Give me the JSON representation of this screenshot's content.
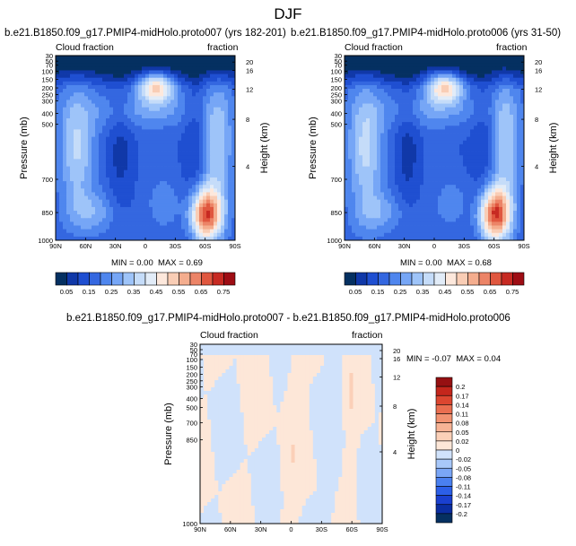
{
  "figure": {
    "title": "DJF"
  },
  "colors": {
    "fill_colors_top": [
      "#053061",
      "#1038a8",
      "#1f4fd1",
      "#3467e0",
      "#4f86ee",
      "#76a6f6",
      "#9ec4f9",
      "#c5dcf9",
      "#e2ecf8",
      "#fde8dc",
      "#f9cdb5",
      "#f4ad8e",
      "#ec8467",
      "#e0573f",
      "#c72a22",
      "#9e0d14",
      "#6a0a10"
    ],
    "fill_colors_diff": [
      "#053061",
      "#0b2ea2",
      "#1a40d0",
      "#2c5fe8",
      "#4a80f0",
      "#7aa6f6",
      "#a8c8fa",
      "#d0e2fb",
      "#fde7d8",
      "#fbd0b8",
      "#f7b395",
      "#f29271",
      "#ea6e50",
      "#dc4630",
      "#c4261c",
      "#961012"
    ]
  },
  "chart_data": [
    {
      "id": "panel-left",
      "type": "contour",
      "title": "b.e21.B1850.f09_g17.PMIP4-midHolo.proto007 (yrs 182-201)",
      "left_label": "Cloud fraction",
      "right_label": "fraction",
      "xlabel": "",
      "ylabel": "Pressure (mb)",
      "y2label": "Height (km)",
      "x_ticks": [
        "90N",
        "60N",
        "30N",
        "0",
        "30S",
        "60S",
        "90S"
      ],
      "y_ticks": [
        "30",
        "50",
        "70",
        "100",
        "150",
        "200",
        "250",
        "300",
        "400",
        "500",
        "700",
        "850",
        "1000"
      ],
      "y2_ticks": [
        "20",
        "16",
        "12",
        "8",
        "4"
      ],
      "min_label": "MIN = ",
      "min_value": "0.00",
      "max_label": "MAX = ",
      "max_value": "0.69",
      "colorbar_labels": [
        "0.05",
        "0.15",
        "0.25",
        "0.35",
        "0.45",
        "0.55",
        "0.65",
        "0.75"
      ],
      "levels": [
        0.05,
        0.1,
        0.15,
        0.2,
        0.25,
        0.3,
        0.35,
        0.4,
        0.45,
        0.5,
        0.55,
        0.6,
        0.65,
        0.7,
        0.75
      ]
    },
    {
      "id": "panel-right",
      "type": "contour",
      "title": "b.e21.B1850.f09_g17.PMIP4-midHolo.proto006 (yrs 31-50)",
      "left_label": "Cloud fraction",
      "right_label": "fraction",
      "xlabel": "",
      "ylabel": "Pressure (mb)",
      "y2label": "Height (km)",
      "x_ticks": [
        "90N",
        "60N",
        "30N",
        "0",
        "30S",
        "60S",
        "90S"
      ],
      "y_ticks": [
        "30",
        "50",
        "70",
        "100",
        "150",
        "200",
        "250",
        "300",
        "400",
        "500",
        "700",
        "850",
        "1000"
      ],
      "y2_ticks": [
        "20",
        "16",
        "12",
        "8",
        "4"
      ],
      "min_label": "MIN = ",
      "min_value": "0.00",
      "max_label": "MAX = ",
      "max_value": "0.68",
      "colorbar_labels": [
        "0.05",
        "0.15",
        "0.25",
        "0.35",
        "0.45",
        "0.55",
        "0.65",
        "0.75"
      ],
      "levels": [
        0.05,
        0.1,
        0.15,
        0.2,
        0.25,
        0.3,
        0.35,
        0.4,
        0.45,
        0.5,
        0.55,
        0.6,
        0.65,
        0.7,
        0.75
      ]
    },
    {
      "id": "panel-diff",
      "type": "contour",
      "title": "b.e21.B1850.f09_g17.PMIP4-midHolo.proto007 - b.e21.B1850.f09_g17.PMIP4-midHolo.proto006",
      "left_label": "Cloud fraction",
      "right_label": "fraction",
      "xlabel": "",
      "ylabel": "Pressure (mb)",
      "y2label": "Height (km)",
      "x_ticks": [
        "90N",
        "60N",
        "30N",
        "0",
        "30S",
        "60S",
        "90S"
      ],
      "y_ticks": [
        "30",
        "50",
        "70",
        "100",
        "150",
        "200",
        "250",
        "300",
        "400",
        "500",
        "700",
        "850",
        "1000"
      ],
      "y2_ticks": [
        "20",
        "16",
        "12",
        "8",
        "4"
      ],
      "min_label": "MIN = ",
      "min_value": "-0.07",
      "max_label": "MAX = ",
      "max_value": "0.04",
      "colorbar_labels": [
        "0.2",
        "0.17",
        "0.14",
        "0.11",
        "0.08",
        "0.05",
        "0.02",
        "0",
        "-0.02",
        "-0.05",
        "-0.08",
        "-0.11",
        "-0.14",
        "-0.17",
        "-0.2"
      ],
      "levels": [
        -0.2,
        -0.17,
        -0.14,
        -0.11,
        -0.08,
        -0.05,
        -0.02,
        0,
        0.02,
        0.05,
        0.08,
        0.11,
        0.14,
        0.17,
        0.2
      ]
    }
  ]
}
